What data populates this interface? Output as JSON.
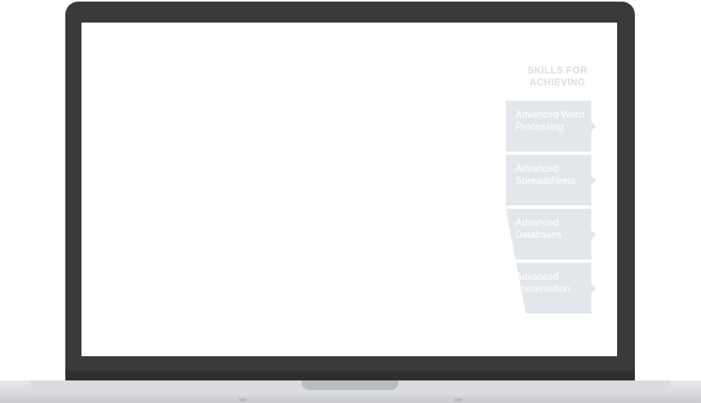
{
  "skills": {
    "title_line1": "SKILLS FOR",
    "title_line2": "ACHIEVING",
    "items": [
      {
        "label": "Advanced Word Processing"
      },
      {
        "label": "Advanced Spreadsheets"
      },
      {
        "label": "Advanced Databases"
      },
      {
        "label": "Advanced Presentation"
      }
    ]
  },
  "colors": {
    "bezel": "#3a3a3a",
    "screen": "#ffffff",
    "card": "#e3e7ec",
    "title": "#d9dee4"
  }
}
